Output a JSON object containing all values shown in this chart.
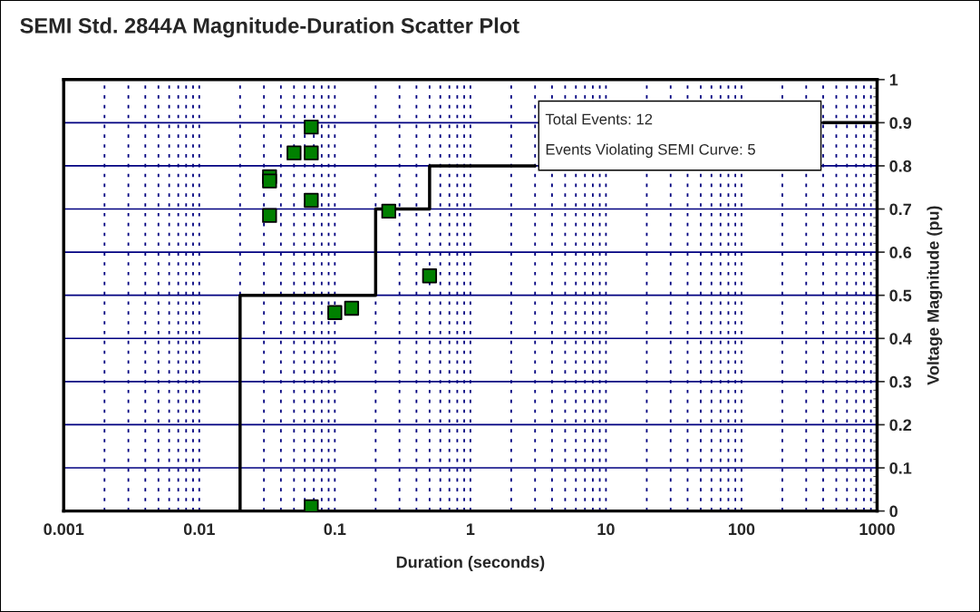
{
  "chart_data": {
    "type": "scatter",
    "title": "SEMI Std. 2844A Magnitude-Duration Scatter Plot",
    "xlabel": "Duration (seconds)",
    "ylabel": "Voltage Magnitude (pu)",
    "log": "x",
    "xlim": [
      0.001,
      1000
    ],
    "xticks": [
      0.001,
      0.01,
      0.1,
      1,
      10,
      100,
      1000
    ],
    "ylim": [
      0,
      1
    ],
    "yticks": [
      0,
      0.1,
      0.2,
      0.3,
      0.4,
      0.5,
      0.6,
      0.7,
      0.8,
      0.9,
      1
    ],
    "grid": true,
    "marker": "square",
    "series": [
      {
        "type": "line",
        "color": "#000000",
        "line_style": "solid",
        "marker": "none",
        "x": [
          0.001,
          0.02,
          0.02,
          0.2,
          0.2,
          0.5,
          0.5,
          3
        ],
        "values": [
          0,
          0,
          0.5,
          0.5,
          0.7,
          0.7,
          0.8,
          0.8
        ]
      },
      {
        "type": "line",
        "color": "#000000",
        "line_style": "solid",
        "marker": "none",
        "x": [
          400,
          1000
        ],
        "values": [
          0.9,
          0.9
        ]
      },
      {
        "color": "#008000",
        "x": [
          0.067,
          0.05,
          0.067,
          0.033,
          0.033,
          0.067,
          0.033,
          0.25,
          0.5,
          0.1,
          0.133,
          0.067
        ],
        "values": [
          0.89,
          0.83,
          0.83,
          0.775,
          0.765,
          0.72,
          0.685,
          0.695,
          0.545,
          0.46,
          0.47,
          0.01
        ]
      }
    ],
    "annotations": [
      "Total Events: 12",
      "Events Violating SEMI Curve: 5"
    ]
  }
}
